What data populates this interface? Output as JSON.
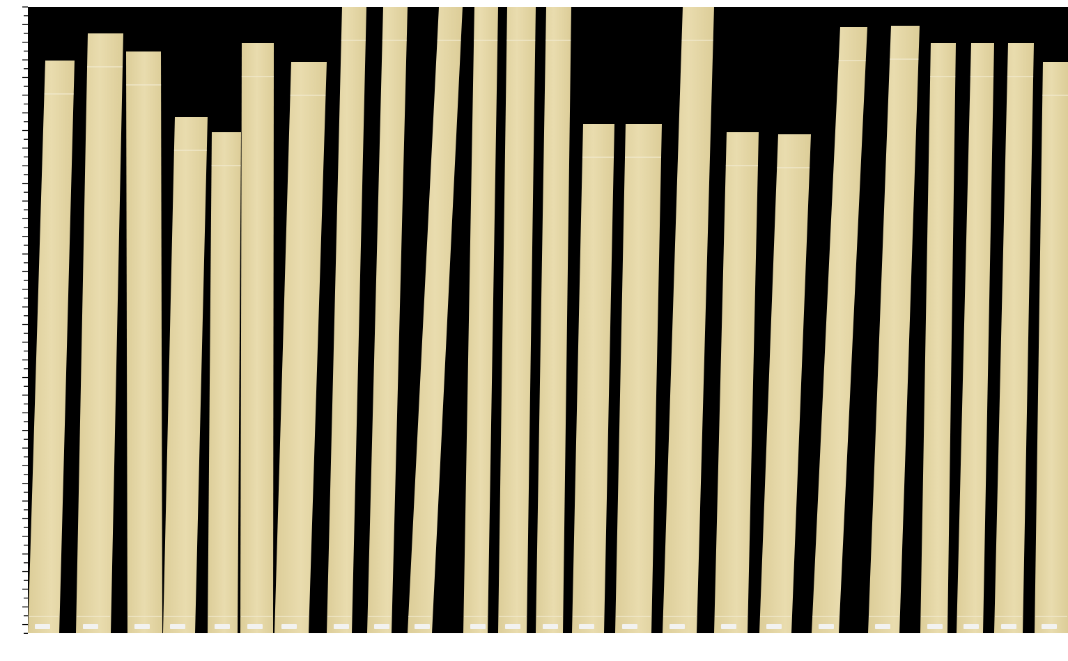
{
  "image": {
    "strip_count": 24,
    "colors": {
      "background": "#000000",
      "page": "#ffffff",
      "strip": "#e9dcae",
      "strip_shade": "#dccd98",
      "label": "#f2f2f0",
      "ruler_tick": "#000000"
    },
    "icons": [
      "ruler-ticks"
    ]
  }
}
